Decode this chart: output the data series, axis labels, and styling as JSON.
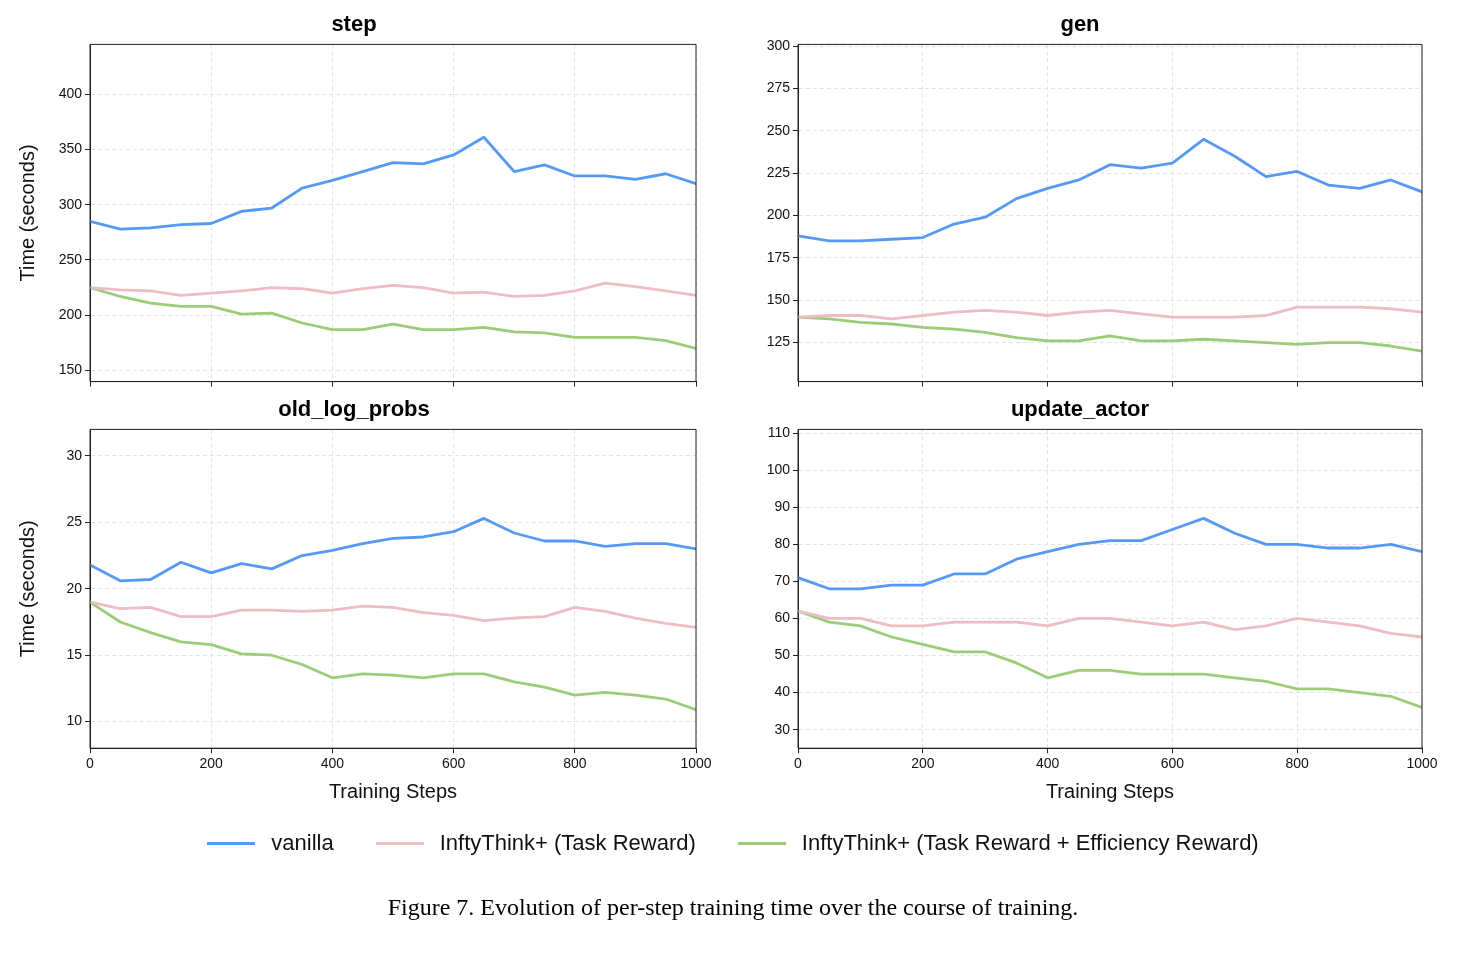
{
  "chart_data": [
    {
      "type": "line",
      "title": "step",
      "ylabel": "Time (seconds)",
      "xlim": [
        0,
        1000
      ],
      "xticks": [
        0,
        200,
        400,
        600,
        800,
        1000
      ],
      "ylim": [
        140,
        445
      ],
      "yticks": [
        150,
        200,
        250,
        300,
        350,
        400
      ],
      "grid": true,
      "legend": "bottom",
      "tick_labels": "y",
      "x": [
        0,
        50,
        100,
        150,
        200,
        250,
        300,
        350,
        400,
        450,
        500,
        550,
        600,
        650,
        700,
        750,
        800,
        850,
        900,
        950,
        1000
      ],
      "series": [
        {
          "name": "vanilla",
          "color": "#5599f5",
          "values": [
            285,
            278,
            279,
            282,
            283,
            294,
            297,
            315,
            322,
            330,
            338,
            337,
            345,
            361,
            330,
            336,
            326,
            326,
            323,
            328,
            319
          ]
        },
        {
          "name": "InftyThink+ (Task Reward)",
          "color": "#eebcc4",
          "values": [
            225,
            223,
            222,
            218,
            220,
            222,
            225,
            224,
            220,
            224,
            227,
            225,
            220,
            221,
            217,
            218,
            222,
            229,
            226,
            222,
            218
          ]
        },
        {
          "name": "InftyThink+ (Task Reward + Efficiency Reward)",
          "color": "#9bcd78",
          "values": [
            225,
            217,
            211,
            208,
            208,
            201,
            202,
            193,
            187,
            187,
            192,
            187,
            187,
            189,
            185,
            184,
            180,
            180,
            180,
            177,
            170
          ]
        }
      ]
    },
    {
      "type": "line",
      "title": "gen",
      "xlim": [
        0,
        1000
      ],
      "xticks": [
        0,
        200,
        400,
        600,
        800,
        1000
      ],
      "ylim": [
        102,
        301
      ],
      "yticks": [
        125,
        150,
        175,
        200,
        225,
        250,
        275,
        300
      ],
      "grid": true,
      "legend": "bottom",
      "tick_labels": "y",
      "x": [
        0,
        50,
        100,
        150,
        200,
        250,
        300,
        350,
        400,
        450,
        500,
        550,
        600,
        650,
        700,
        750,
        800,
        850,
        900,
        950,
        1000
      ],
      "series": [
        {
          "name": "vanilla",
          "color": "#5599f5",
          "values": [
            188,
            185,
            185,
            186,
            187,
            195,
            199,
            210,
            216,
            221,
            230,
            228,
            231,
            245,
            235,
            223,
            226,
            218,
            216,
            221,
            214
          ]
        },
        {
          "name": "InftyThink+ (Task Reward)",
          "color": "#eebcc4",
          "values": [
            140,
            141,
            141,
            139,
            141,
            143,
            144,
            143,
            141,
            143,
            144,
            142,
            140,
            140,
            140,
            141,
            146,
            146,
            146,
            145,
            143
          ]
        },
        {
          "name": "InftyThink+ (Task Reward + Efficiency Reward)",
          "color": "#9bcd78",
          "values": [
            140,
            139,
            137,
            136,
            134,
            133,
            131,
            128,
            126,
            126,
            129,
            126,
            126,
            127,
            126,
            125,
            124,
            125,
            125,
            123,
            120
          ]
        }
      ]
    },
    {
      "type": "line",
      "title": "old_log_probs",
      "xlabel": "Training Steps",
      "ylabel": "Time (seconds)",
      "xlim": [
        0,
        1000
      ],
      "xticks": [
        0,
        200,
        400,
        600,
        800,
        1000
      ],
      "ylim": [
        8,
        32
      ],
      "yticks": [
        10,
        15,
        20,
        25,
        30
      ],
      "grid": true,
      "legend": "bottom",
      "x": [
        0,
        50,
        100,
        150,
        200,
        250,
        300,
        350,
        400,
        450,
        500,
        550,
        600,
        650,
        700,
        750,
        800,
        850,
        900,
        950,
        1000
      ],
      "series": [
        {
          "name": "vanilla",
          "color": "#5599f5",
          "values": [
            21.8,
            20.6,
            20.7,
            22.0,
            21.2,
            21.9,
            21.5,
            22.5,
            22.9,
            23.4,
            23.8,
            23.9,
            24.3,
            25.3,
            24.2,
            23.6,
            23.6,
            23.2,
            23.4,
            23.4,
            23.0
          ]
        },
        {
          "name": "InftyThink+ (Task Reward)",
          "color": "#eebcc4",
          "values": [
            19.0,
            18.5,
            18.6,
            17.9,
            17.9,
            18.4,
            18.4,
            18.3,
            18.4,
            18.7,
            18.6,
            18.2,
            18.0,
            17.6,
            17.8,
            17.9,
            18.6,
            18.3,
            17.8,
            17.4,
            17.1
          ]
        },
        {
          "name": "InftyThink+ (Task Reward + Efficiency Reward)",
          "color": "#9bcd78",
          "values": [
            19.0,
            17.5,
            16.7,
            16.0,
            15.8,
            15.1,
            15.0,
            14.3,
            13.3,
            13.6,
            13.5,
            13.3,
            13.6,
            13.6,
            13.0,
            12.6,
            12.0,
            12.2,
            12.0,
            11.7,
            10.9
          ]
        }
      ]
    },
    {
      "type": "line",
      "title": "update_actor",
      "xlabel": "Training Steps",
      "xlim": [
        0,
        1000
      ],
      "xticks": [
        0,
        200,
        400,
        600,
        800,
        1000
      ],
      "ylim": [
        25,
        111
      ],
      "yticks": [
        30,
        40,
        50,
        60,
        70,
        80,
        90,
        100,
        110
      ],
      "grid": true,
      "legend": "bottom",
      "annotations": [
        "Figure 7. Evolution of per-step training time over the course of training."
      ],
      "x": [
        0,
        50,
        100,
        150,
        200,
        250,
        300,
        350,
        400,
        450,
        500,
        550,
        600,
        650,
        700,
        750,
        800,
        850,
        900,
        950,
        1000
      ],
      "series": [
        {
          "name": "vanilla",
          "color": "#5599f5",
          "values": [
            71,
            68,
            68,
            69,
            69,
            72,
            72,
            76,
            78,
            80,
            81,
            81,
            84,
            87,
            83,
            80,
            80,
            79,
            79,
            80,
            78
          ]
        },
        {
          "name": "InftyThink+ (Task Reward)",
          "color": "#eebcc4",
          "values": [
            62,
            60,
            60,
            58,
            58,
            59,
            59,
            59,
            58,
            60,
            60,
            59,
            58,
            59,
            57,
            58,
            60,
            59,
            58,
            56,
            55
          ]
        },
        {
          "name": "InftyThink+ (Task Reward + Efficiency Reward)",
          "color": "#9bcd78",
          "values": [
            62,
            59,
            58,
            55,
            53,
            51,
            51,
            48,
            44,
            46,
            46,
            45,
            45,
            45,
            44,
            43,
            41,
            41,
            40,
            39,
            36
          ]
        }
      ]
    }
  ]
}
